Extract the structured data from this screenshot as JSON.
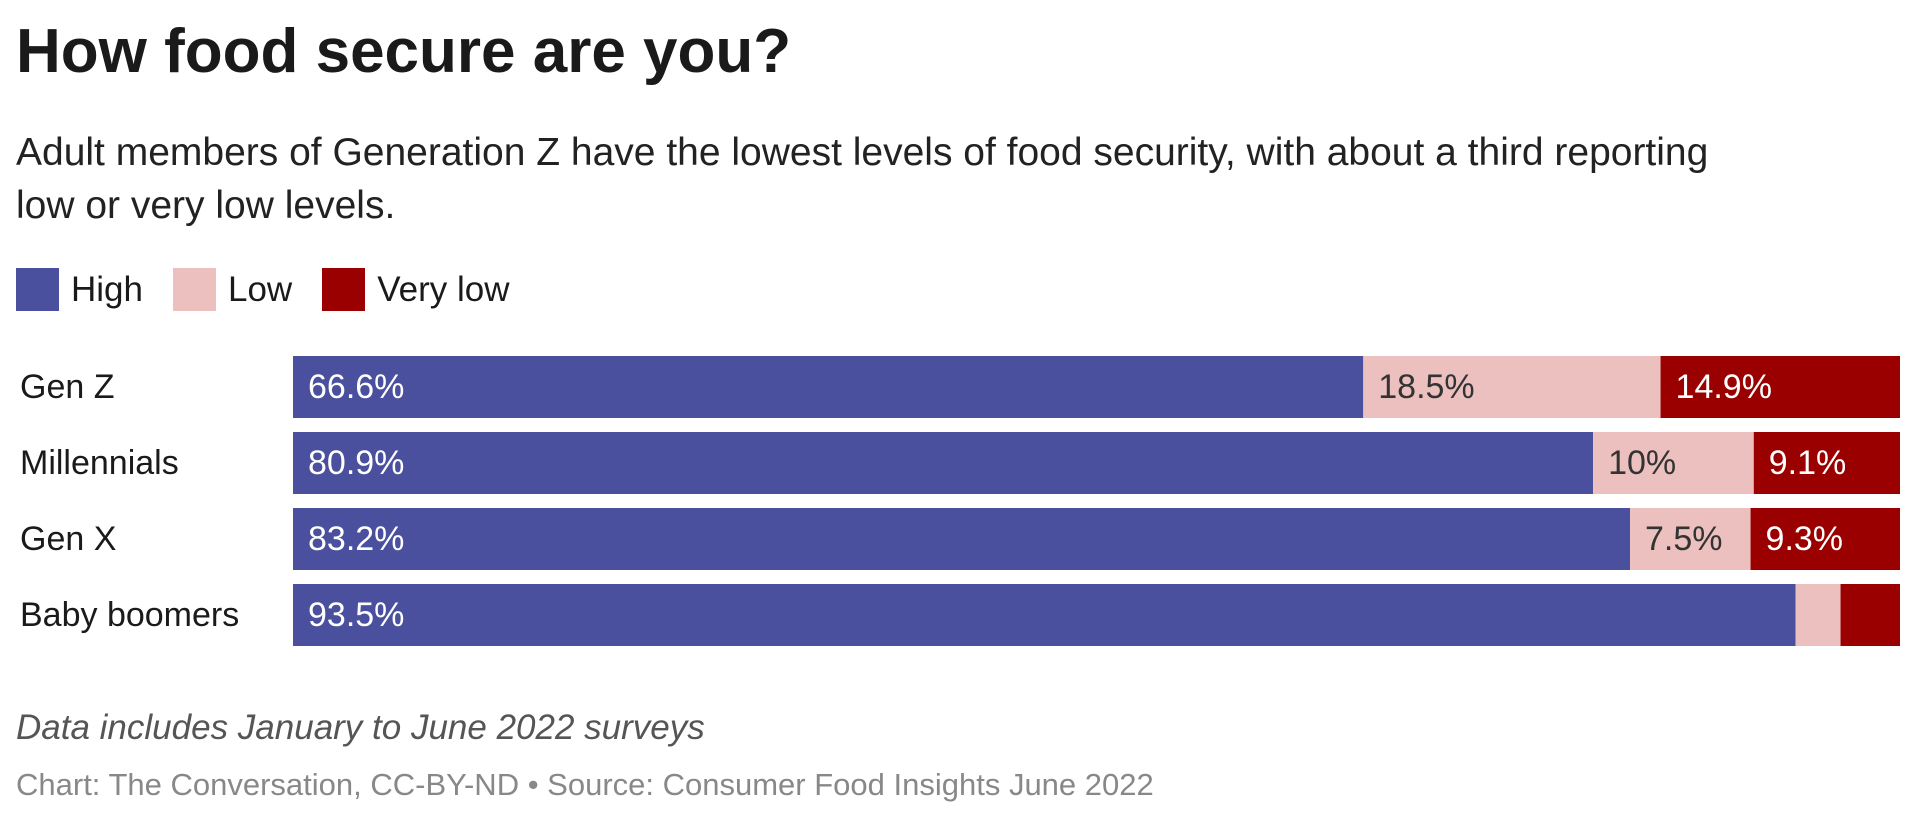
{
  "chart_data": {
    "type": "stacked-bar-horizontal",
    "title": "How food secure are you?",
    "subtitle": "Adult members of Generation Z have the lowest levels of food security, with about a third reporting low or very low levels.",
    "categories": [
      "Gen Z",
      "Millennials",
      "Gen X",
      "Baby boomers"
    ],
    "series": [
      {
        "name": "High",
        "color": "#4a4f9e",
        "values": [
          66.6,
          80.9,
          83.2,
          93.5
        ],
        "value_labels": [
          "66.6%",
          "80.9%",
          "83.2%",
          "93.5%"
        ]
      },
      {
        "name": "Low",
        "color": "#ecc0bf",
        "values": [
          18.5,
          10,
          7.5,
          2.8
        ],
        "value_labels": [
          "18.5%",
          "10%",
          "7.5%",
          null
        ]
      },
      {
        "name": "Very low",
        "color": "#9b0000",
        "values": [
          14.9,
          9.1,
          9.3,
          3.7
        ],
        "value_labels": [
          "14.9%",
          "9.1%",
          "9.3%",
          null
        ]
      }
    ],
    "xlim": [
      0,
      100
    ],
    "note": "Data includes January to June 2022 surveys",
    "source": "Chart: The Conversation, CC-BY-ND • Source: Consumer Food Insights June 2022"
  }
}
